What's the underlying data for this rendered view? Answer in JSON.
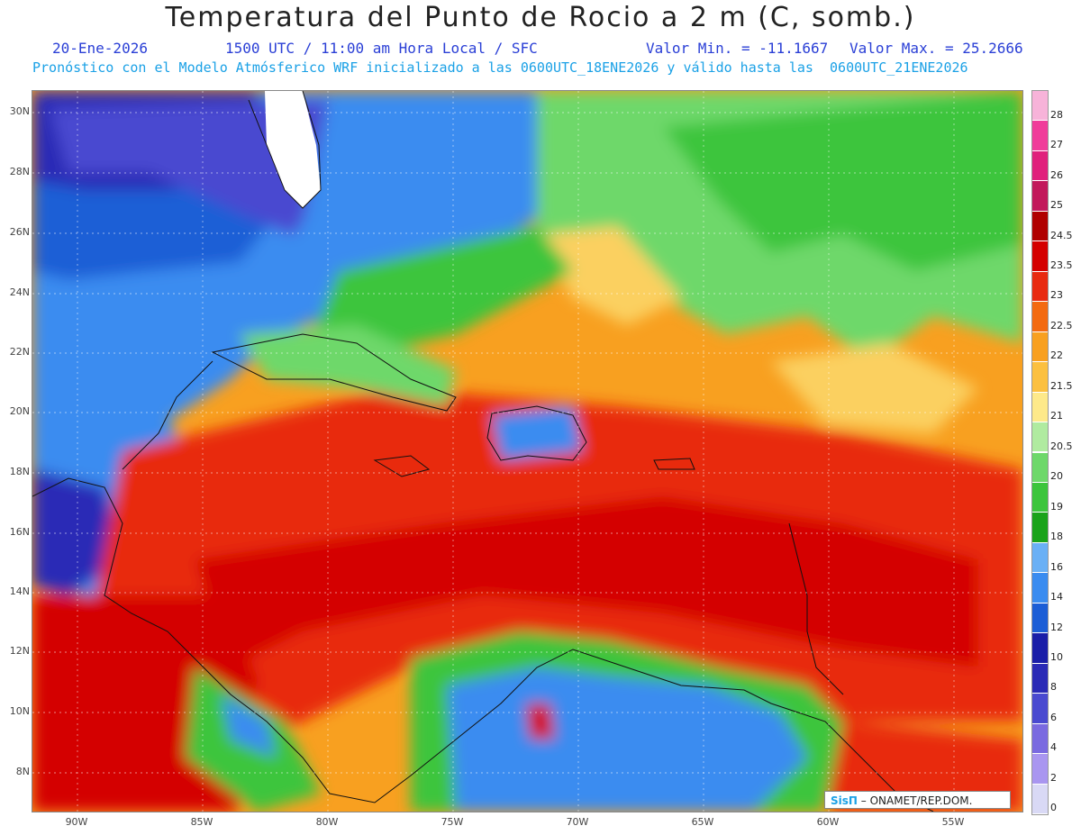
{
  "title": "Temperatura del Punto de Rocio a 2 m (C, somb.)",
  "subtitle": {
    "date": "20-Ene-2026",
    "time": "1500 UTC / 11:00 am Hora Local / SFC",
    "min": "Valor Min. = -11.1667",
    "max": "Valor Max. = 25.2666",
    "model_line": "Pronóstico con el Modelo Atmósferico WRF inicializado a las 0600UTC_18ENE2026 y válido hasta las  0600UTC_21ENE2026"
  },
  "axes": {
    "lat_labels": [
      "30N",
      "28N",
      "26N",
      "24N",
      "22N",
      "20N",
      "18N",
      "16N",
      "14N",
      "12N",
      "10N",
      "8N"
    ],
    "lon_labels": [
      "90W",
      "85W",
      "80W",
      "75W",
      "70W",
      "65W",
      "60W",
      "55W"
    ]
  },
  "legend": {
    "labels": [
      "28",
      "27",
      "26",
      "25",
      "24.5",
      "23.5",
      "23",
      "22.5",
      "22",
      "21.5",
      "21",
      "20.5",
      "20",
      "19",
      "18",
      "16",
      "14",
      "12",
      "10",
      "8",
      "6",
      "4",
      "2",
      "0"
    ],
    "colors": [
      "#f7b3d9",
      "#f03c9a",
      "#e0207c",
      "#c2185b",
      "#b00000",
      "#d40000",
      "#e82a10",
      "#f36a10",
      "#f8a020",
      "#fbc040",
      "#fde98a",
      "#b0eba0",
      "#6ed86a",
      "#3cc53c",
      "#1aa31a",
      "#6ab0f5",
      "#3a8cf0",
      "#1c5ed6",
      "#1a1ea8",
      "#2a2ab6",
      "#4a4ad0",
      "#7a6ae0",
      "#a996f0",
      "#d9d9f5"
    ]
  },
  "map_regions": {
    "ocean_color": "#f0501c",
    "deep_red": "#c81010",
    "orange": "#f8a020",
    "yellow": "#fbd060",
    "light_green": "#b0eba0",
    "green": "#3cc53c",
    "dark_green": "#1aa31a",
    "light_blue": "#6ab0f5",
    "blue": "#3a8cf0",
    "purple": "#4a4ad0",
    "land_white": "#ffffff"
  },
  "credit": {
    "logo": "SisΠ",
    "text": " – ONAMET/REP.DOM."
  }
}
